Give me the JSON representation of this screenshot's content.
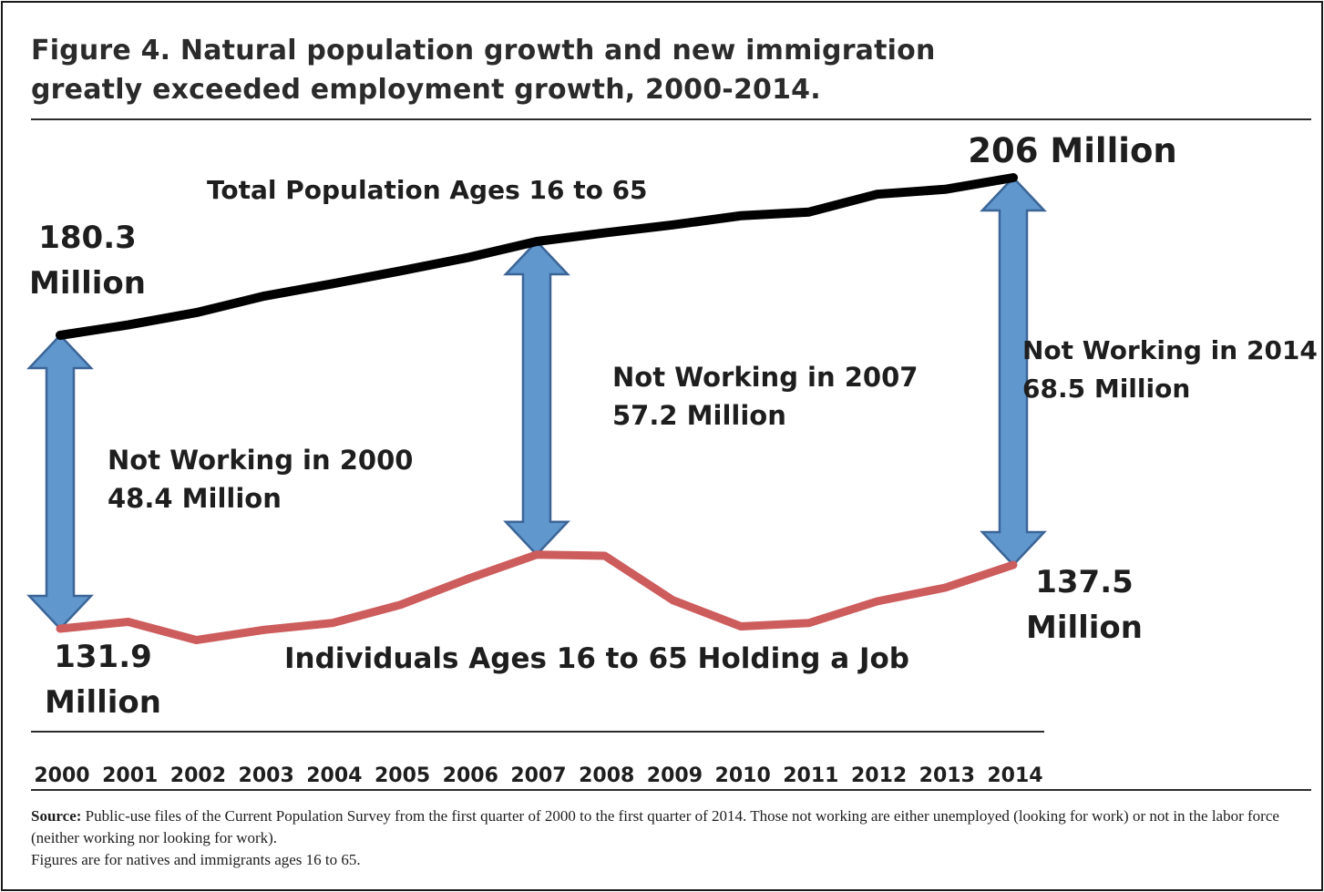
{
  "title": {
    "line1": "Figure 4. Natural population growth and new immigration",
    "line2": "greatly exceeded employment growth, 2000-2014."
  },
  "colors": {
    "population_line": "#000000",
    "employment_line": "#cd5c5c",
    "arrow_fill": "#6097cd",
    "arrow_stroke": "#3b6597"
  },
  "chart_data": {
    "type": "line",
    "x": [
      2000,
      2001,
      2002,
      2003,
      2004,
      2005,
      2006,
      2007,
      2008,
      2009,
      2010,
      2011,
      2012,
      2013,
      2014
    ],
    "x_tick_labels": [
      "2000",
      "2001",
      "2002",
      "2003",
      "2004",
      "2005",
      "2006",
      "2007",
      "2008",
      "2009",
      "2010",
      "2011",
      "2012",
      "2013",
      "2014"
    ],
    "series": [
      {
        "name": "Total Population Ages 16 to 65",
        "values": [
          180.3,
          182.0,
          184.0,
          186.7,
          188.7,
          190.8,
          193.0,
          195.6,
          197.0,
          198.3,
          199.8,
          200.4,
          203.3,
          204.1,
          206.0
        ]
      },
      {
        "name": "Individuals Ages 16 to 65 Holding a Job",
        "values": [
          131.9,
          132.5,
          130.9,
          131.8,
          132.4,
          134.0,
          136.3,
          138.4,
          138.3,
          134.4,
          132.1,
          132.4,
          134.3,
          135.5,
          137.5
        ]
      }
    ],
    "annotations": {
      "start_population": [
        "180.3",
        "Million"
      ],
      "end_population": "206 Million",
      "start_employed": [
        "131.9",
        "Million"
      ],
      "end_employed": [
        "137.5",
        "Million"
      ],
      "gaps": [
        {
          "year": 2000,
          "lines": [
            "Not Working in 2000",
            "48.4 Million"
          ],
          "value": 48.4
        },
        {
          "year": 2007,
          "lines": [
            "Not Working in 2007",
            "57.2 Million"
          ],
          "value": 57.2
        },
        {
          "year": 2014,
          "lines": [
            "Not Working in 2014",
            "68.5 Million"
          ],
          "value": 68.5
        }
      ]
    },
    "ylim": [
      120,
      215
    ]
  },
  "source": {
    "label": "Source:",
    "text": " Public-use files of the Current Population Survey from the first quarter of 2000 to the first quarter of 2014. Those not working are either unemployed (looking for work) or not in the labor force (neither working nor looking for work).",
    "note": "Figures are for natives and immigrants ages 16 to 65."
  }
}
